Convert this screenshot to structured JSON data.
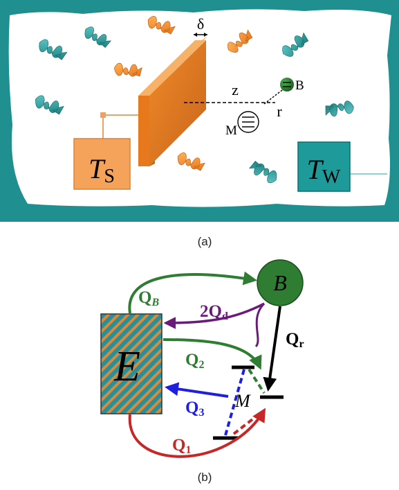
{
  "panel_a": {
    "caption": "(a)",
    "delta_label": "δ",
    "z_label": "z",
    "r_label": "r",
    "B_label": "B",
    "M_label": "M",
    "TS": {
      "main": "T",
      "sub": "S"
    },
    "TW": {
      "main": "T",
      "sub": "W"
    }
  },
  "panel_b": {
    "caption": "(b)",
    "E_label": "E",
    "B_label": "B",
    "M_label": "M",
    "QB": {
      "main": "Q",
      "sub": "B"
    },
    "Qd": {
      "main": "2Q",
      "sub": "d"
    },
    "Qr": {
      "main": "Q",
      "sub": "r"
    },
    "Q2": {
      "main": "Q",
      "sub": "2"
    },
    "Q3": {
      "main": "Q",
      "sub": "3"
    },
    "Q1": {
      "main": "Q",
      "sub": "1"
    }
  },
  "colors": {
    "frame_teal": "#1f8f8f",
    "plate_orange": "#e67e22",
    "box_orange": "#f5a35a",
    "box_teal": "#1f9a9a",
    "green": "#2e7d32",
    "purple": "#6a1b7a",
    "blue": "#1f1fe0",
    "red": "#c62828",
    "black": "#000000"
  }
}
